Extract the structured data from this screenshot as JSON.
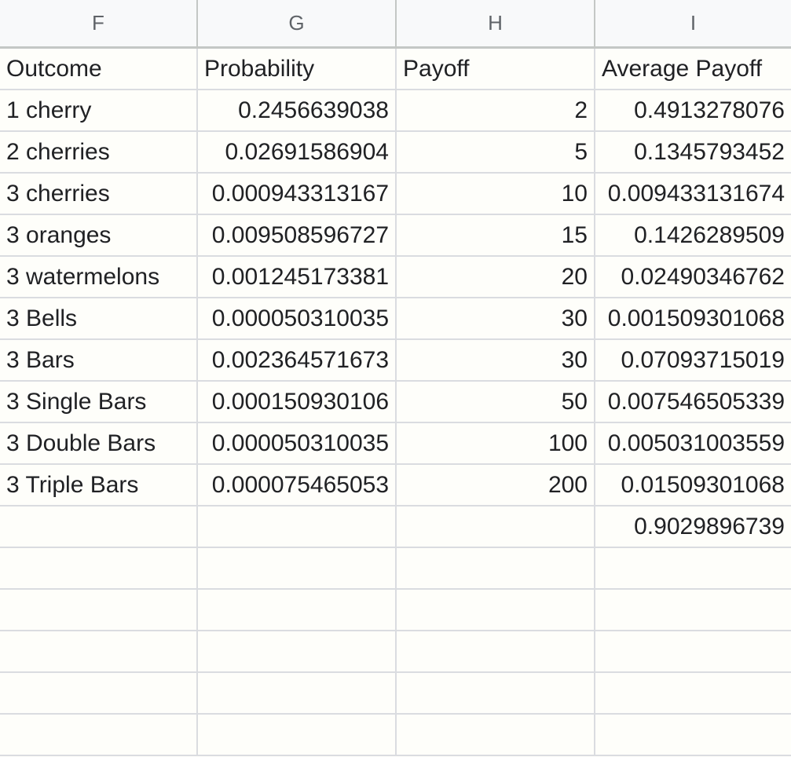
{
  "columns": [
    "F",
    "G",
    "H",
    "I"
  ],
  "rows": [
    {
      "f": "Outcome",
      "g": "Probability",
      "h": "Payoff",
      "i": "Average Payoff",
      "header": true
    },
    {
      "f": "1 cherry",
      "g": "0.2456639038",
      "h": "2",
      "i": "0.4913278076"
    },
    {
      "f": "2 cherries",
      "g": "0.02691586904",
      "h": "5",
      "i": "0.1345793452"
    },
    {
      "f": "3 cherries",
      "g": "0.000943313167",
      "h": "10",
      "i": "0.009433131674"
    },
    {
      "f": "3 oranges",
      "g": "0.009508596727",
      "h": "15",
      "i": "0.1426289509"
    },
    {
      "f": "3 watermelons",
      "g": "0.001245173381",
      "h": "20",
      "i": "0.02490346762"
    },
    {
      "f": "3 Bells",
      "g": "0.000050310035",
      "h": "30",
      "i": "0.001509301068"
    },
    {
      "f": "3 Bars",
      "g": "0.002364571673",
      "h": "30",
      "i": "0.07093715019"
    },
    {
      "f": "3 Single Bars",
      "g": "0.000150930106",
      "h": "50",
      "i": "0.007546505339"
    },
    {
      "f": "3 Double Bars",
      "g": "0.000050310035",
      "h": "100",
      "i": "0.005031003559"
    },
    {
      "f": "3 Triple Bars",
      "g": "0.000075465053",
      "h": "200",
      "i": "0.01509301068"
    },
    {
      "f": "",
      "g": "",
      "h": "",
      "i": "0.9029896739"
    },
    {
      "f": "",
      "g": "",
      "h": "",
      "i": ""
    },
    {
      "f": "",
      "g": "",
      "h": "",
      "i": ""
    },
    {
      "f": "",
      "g": "",
      "h": "",
      "i": ""
    },
    {
      "f": "",
      "g": "",
      "h": "",
      "i": ""
    },
    {
      "f": "",
      "g": "",
      "h": "",
      "i": ""
    }
  ]
}
